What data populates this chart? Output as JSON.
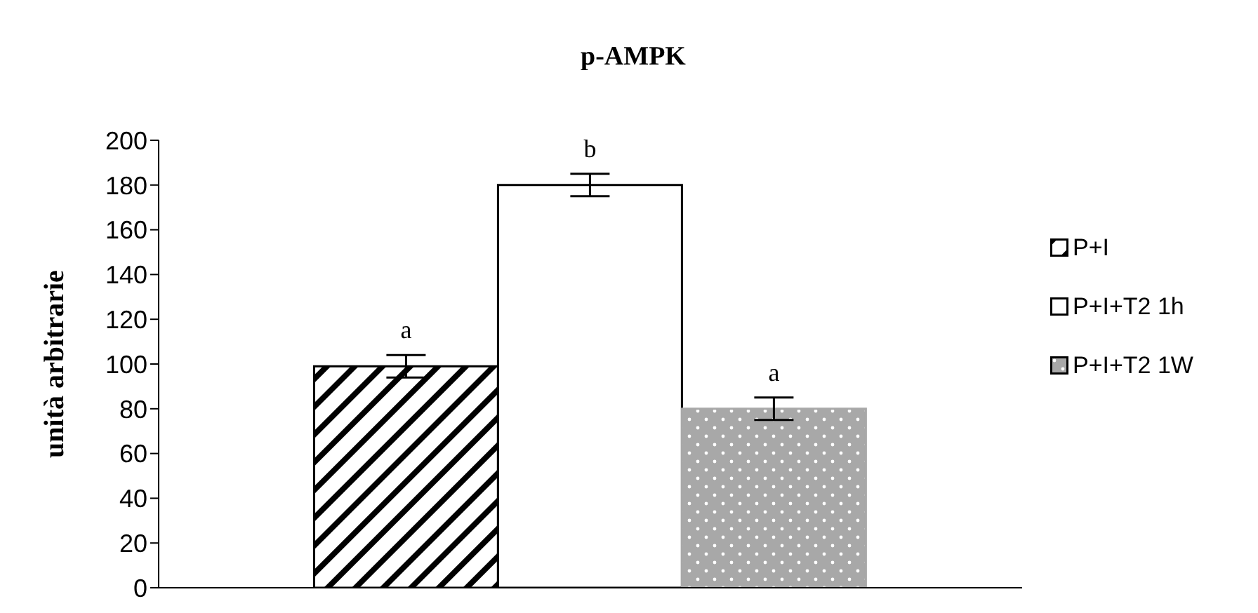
{
  "chart_data": {
    "type": "bar",
    "title": "p-AMPK",
    "ylabel": "unità arbitrarie",
    "categories": [
      null
    ],
    "series": [
      {
        "name": "P+I",
        "color": "#000000",
        "values": [
          99
        ],
        "errors": [
          5
        ]
      },
      {
        "name": "P+I+T2 1h",
        "color": "#ffffff",
        "values": [
          180
        ],
        "errors": [
          5
        ]
      },
      {
        "name": "P+I+T2 1W",
        "color": "#a8a8a8",
        "values": [
          80
        ],
        "errors": [
          5
        ]
      }
    ],
    "annotations": [
      "a",
      "b",
      "a"
    ],
    "ylim": [
      0,
      200
    ],
    "yticks": [
      0,
      20,
      40,
      60,
      80,
      100,
      120,
      140,
      160,
      180,
      200
    ],
    "grid": false,
    "legend": "right"
  }
}
